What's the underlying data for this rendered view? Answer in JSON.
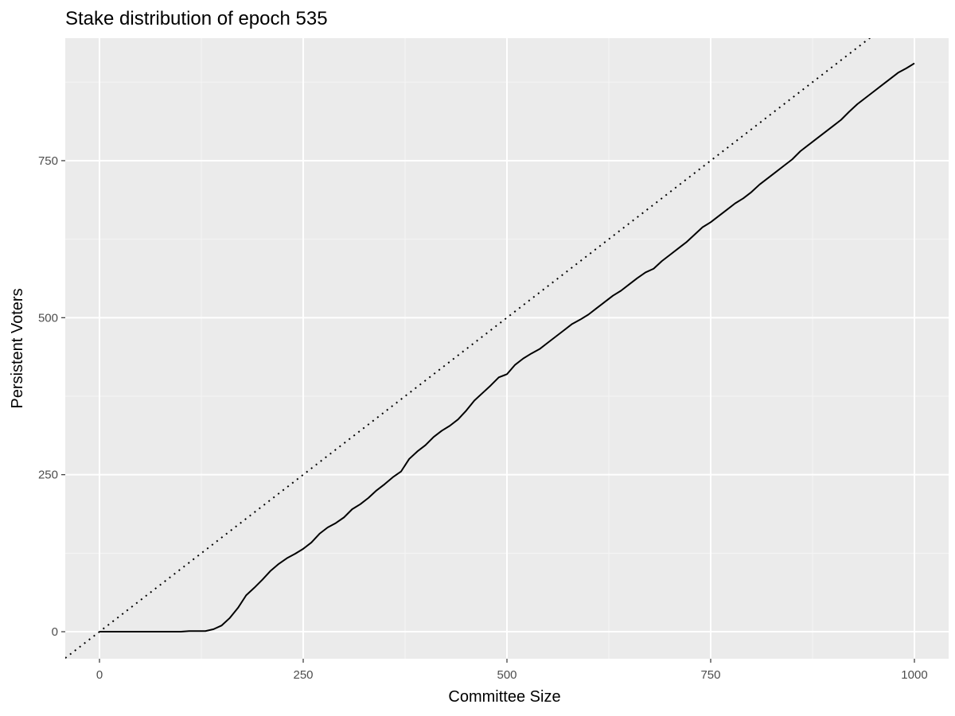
{
  "chart_data": {
    "type": "line",
    "title": "Stake distribution of epoch 535",
    "xlabel": "Committee Size",
    "ylabel": "Persistent Voters",
    "xlim": [
      -42,
      1042
    ],
    "ylim": [
      -43,
      945
    ],
    "x_ticks": [
      0,
      250,
      500,
      750,
      1000
    ],
    "y_ticks": [
      0,
      250,
      500,
      750
    ],
    "x_tick_labels": [
      "0",
      "250",
      "500",
      "750",
      "1000"
    ],
    "y_tick_labels": [
      "0",
      "250",
      "500",
      "750"
    ],
    "grid": true,
    "legend": "none",
    "colors": {
      "panel_background": "#ebebeb",
      "grid_major": "#ffffff",
      "grid_minor": "#f5f5f5",
      "line": "#000000",
      "tick_mark": "#333333"
    },
    "series": [
      {
        "style": "solid",
        "x": [
          0,
          50,
          100,
          110,
          120,
          130,
          140,
          150,
          160,
          170,
          180,
          190,
          200,
          210,
          220,
          230,
          240,
          250,
          260,
          270,
          280,
          290,
          300,
          310,
          320,
          330,
          340,
          350,
          360,
          370,
          380,
          390,
          400,
          410,
          420,
          430,
          440,
          450,
          460,
          470,
          480,
          490,
          500,
          510,
          520,
          530,
          540,
          550,
          560,
          570,
          580,
          590,
          600,
          610,
          620,
          630,
          640,
          650,
          660,
          670,
          680,
          690,
          700,
          710,
          720,
          730,
          740,
          750,
          760,
          770,
          780,
          790,
          800,
          810,
          820,
          830,
          840,
          850,
          860,
          870,
          880,
          890,
          900,
          910,
          920,
          930,
          940,
          950,
          960,
          970,
          980,
          990,
          1000
        ],
        "y": [
          0,
          0,
          0,
          1,
          1,
          1,
          4,
          10,
          22,
          38,
          58,
          70,
          83,
          97,
          108,
          117,
          124,
          132,
          142,
          156,
          166,
          173,
          182,
          195,
          203,
          213,
          225,
          235,
          246,
          255,
          275,
          287,
          297,
          310,
          320,
          328,
          338,
          352,
          368,
          380,
          392,
          405,
          410,
          425,
          435,
          443,
          450,
          460,
          470,
          480,
          490,
          497,
          505,
          515,
          525,
          535,
          543,
          553,
          563,
          572,
          578,
          590,
          600,
          610,
          620,
          632,
          644,
          652,
          662,
          672,
          682,
          690,
          700,
          712,
          722,
          732,
          742,
          752,
          765,
          775,
          785,
          795,
          805,
          815,
          828,
          840,
          850,
          860,
          870,
          880,
          890,
          897,
          905
        ]
      },
      {
        "style": "dotted",
        "x": [
          -42,
          1042
        ],
        "y": [
          -42,
          1042
        ]
      }
    ]
  }
}
